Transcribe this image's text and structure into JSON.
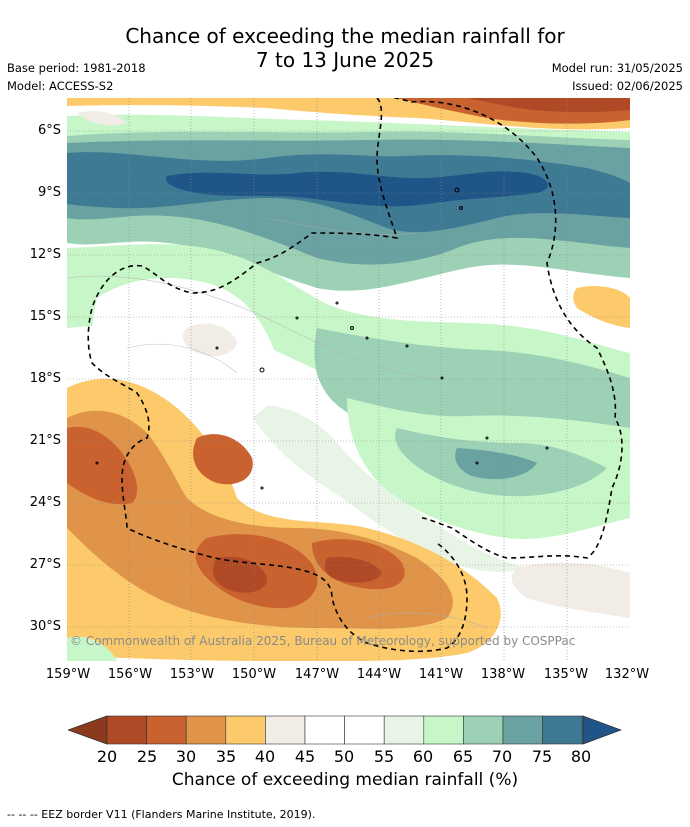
{
  "title": {
    "line1": "Chance of exceeding the median rainfall for",
    "line2": "7 to 13 June 2025"
  },
  "meta": {
    "base_period": "Base period: 1981-2018",
    "model": "Model: ACCESS-S2",
    "model_run": "Model run: 31/05/2025",
    "issued": "Issued: 02/06/2025"
  },
  "map": {
    "lat_labels": [
      "6°S",
      "9°S",
      "12°S",
      "15°S",
      "18°S",
      "21°S",
      "24°S",
      "27°S",
      "30°S"
    ],
    "lon_labels": [
      "159°W",
      "156°W",
      "153°W",
      "150°W",
      "147°W",
      "144°W",
      "141°W",
      "138°W",
      "135°W",
      "132°W"
    ],
    "copyright": "© Commonwealth of Australia 2025, Bureau of Meteorology, supported by COSPPac"
  },
  "colorbar": {
    "title": "Chance of exceeding median rainfall (%)",
    "ticks": [
      "20",
      "25",
      "30",
      "35",
      "40",
      "45",
      "50",
      "55",
      "60",
      "65",
      "70",
      "75",
      "80"
    ],
    "colors": [
      "#8b3a1e",
      "#b04a26",
      "#c9622f",
      "#e0944a",
      "#fcca6a",
      "#f1ede6",
      "#ffffff",
      "#ffffff",
      "#e8f5e6",
      "#c7f7c8",
      "#9dd1b6",
      "#6aa1a1",
      "#3f7a94",
      "#1f5687"
    ]
  },
  "footnote": "--  --  -- EEZ border V11 (Flanders Marine Institute, 2019)."
}
